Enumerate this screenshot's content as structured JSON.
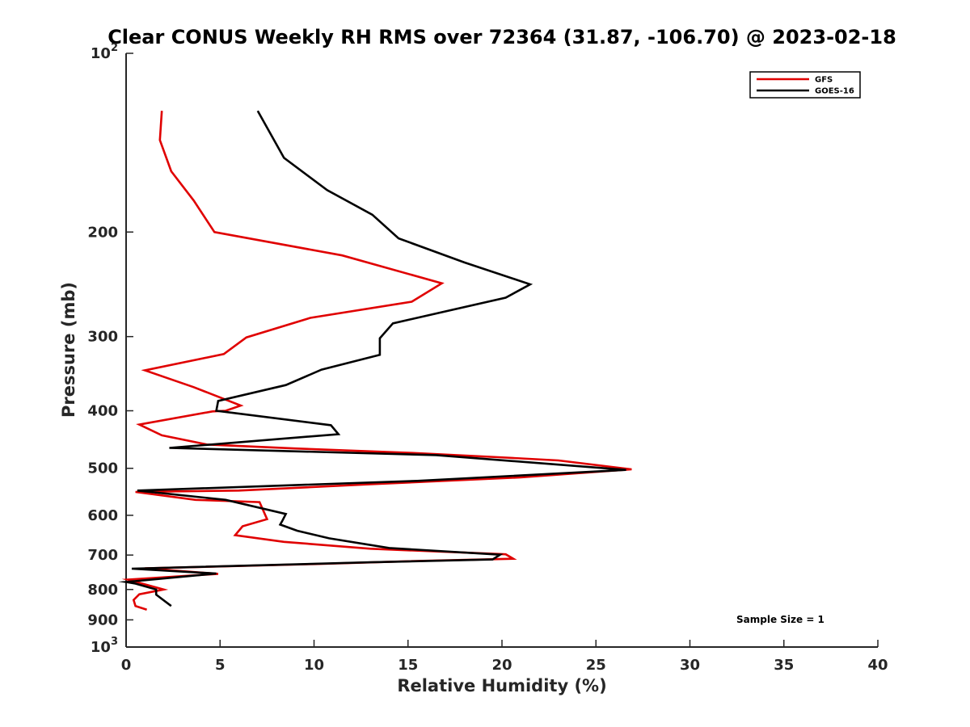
{
  "chart_data": {
    "type": "line",
    "title": "Clear CONUS Weekly RH RMS over 72364 (31.87, -106.70) @ 2023-02-18",
    "xlabel": "Relative Humidity (%)",
    "ylabel": "Pressure (mb)",
    "xlim": [
      0,
      40
    ],
    "ylim": [
      100,
      1000
    ],
    "yscale": "log",
    "y_reversed": true,
    "xticks": [
      0,
      5,
      10,
      15,
      20,
      25,
      30,
      35,
      40
    ],
    "xtick_labels": [
      "0",
      "5",
      "10",
      "15",
      "20",
      "25",
      "30",
      "35",
      "40"
    ],
    "yticks": [
      {
        "value": 100,
        "base": "10",
        "exp": "2"
      },
      {
        "value": 200,
        "label": "200"
      },
      {
        "value": 300,
        "label": "300"
      },
      {
        "value": 400,
        "label": "400"
      },
      {
        "value": 500,
        "label": "500"
      },
      {
        "value": 600,
        "label": "600"
      },
      {
        "value": 700,
        "label": "700"
      },
      {
        "value": 800,
        "label": "800"
      },
      {
        "value": 900,
        "label": "900"
      },
      {
        "value": 1000,
        "base": "10",
        "exp": "3"
      }
    ],
    "grid": false,
    "legend_position": "top-right",
    "annotation": "Sample Size = 1",
    "series": [
      {
        "name": "GFS",
        "color": "#e00000",
        "points": [
          [
            1.9,
            125
          ],
          [
            1.8,
            140
          ],
          [
            2.4,
            158
          ],
          [
            3.6,
            177
          ],
          [
            4.7,
            200
          ],
          [
            11.5,
            219
          ],
          [
            16.8,
            244
          ],
          [
            15.2,
            262
          ],
          [
            9.8,
            279
          ],
          [
            6.4,
            301
          ],
          [
            5.2,
            321
          ],
          [
            1.0,
            342
          ],
          [
            3.6,
            365
          ],
          [
            6.1,
            392
          ],
          [
            5.3,
            400
          ],
          [
            4.6,
            401
          ],
          [
            0.7,
            422
          ],
          [
            1.9,
            440
          ],
          [
            4.3,
            456
          ],
          [
            9.0,
            463
          ],
          [
            15.2,
            471
          ],
          [
            19.8,
            479
          ],
          [
            23.0,
            485
          ],
          [
            26.9,
            502
          ],
          [
            21.0,
            518
          ],
          [
            13.0,
            532
          ],
          [
            6.0,
            545
          ],
          [
            0.5,
            548
          ],
          [
            3.7,
            565
          ],
          [
            7.1,
            570
          ],
          [
            7.5,
            609
          ],
          [
            6.2,
            626
          ],
          [
            5.8,
            648
          ],
          [
            8.4,
            665
          ],
          [
            13.0,
            683
          ],
          [
            20.2,
            698
          ],
          [
            20.6,
            710
          ],
          [
            15.0,
            717
          ],
          [
            10.0,
            725
          ],
          [
            1.0,
            737
          ],
          [
            4.9,
            753
          ],
          [
            0.1,
            770
          ],
          [
            2.0,
            800
          ],
          [
            0.7,
            815
          ],
          [
            0.4,
            833
          ],
          [
            0.5,
            853
          ],
          [
            1.1,
            865
          ]
        ]
      },
      {
        "name": "GOES-16",
        "color": "#000000",
        "points": [
          [
            7.0,
            125
          ],
          [
            8.4,
            150
          ],
          [
            10.7,
            170
          ],
          [
            13.1,
            187
          ],
          [
            14.5,
            205
          ],
          [
            18.0,
            225
          ],
          [
            21.5,
            245
          ],
          [
            20.2,
            258
          ],
          [
            14.2,
            285
          ],
          [
            13.5,
            302
          ],
          [
            13.5,
            322
          ],
          [
            10.4,
            341
          ],
          [
            8.5,
            362
          ],
          [
            4.9,
            385
          ],
          [
            4.8,
            400
          ],
          [
            10.9,
            423
          ],
          [
            11.3,
            438
          ],
          [
            2.3,
            462
          ],
          [
            16.5,
            475
          ],
          [
            26.6,
            503
          ],
          [
            15.5,
            525
          ],
          [
            0.6,
            545
          ],
          [
            5.3,
            565
          ],
          [
            8.5,
            597
          ],
          [
            8.3,
            614
          ],
          [
            8.2,
            622
          ],
          [
            9.1,
            637
          ],
          [
            10.8,
            656
          ],
          [
            14.0,
            681
          ],
          [
            19.9,
            699
          ],
          [
            19.5,
            712
          ],
          [
            13.0,
            720
          ],
          [
            0.3,
            738
          ],
          [
            2.5,
            745
          ],
          [
            4.8,
            752
          ],
          [
            0.0,
            777
          ],
          [
            0.5,
            782
          ],
          [
            1.6,
            800
          ],
          [
            1.6,
            816
          ],
          [
            2.4,
            853
          ]
        ]
      }
    ]
  }
}
